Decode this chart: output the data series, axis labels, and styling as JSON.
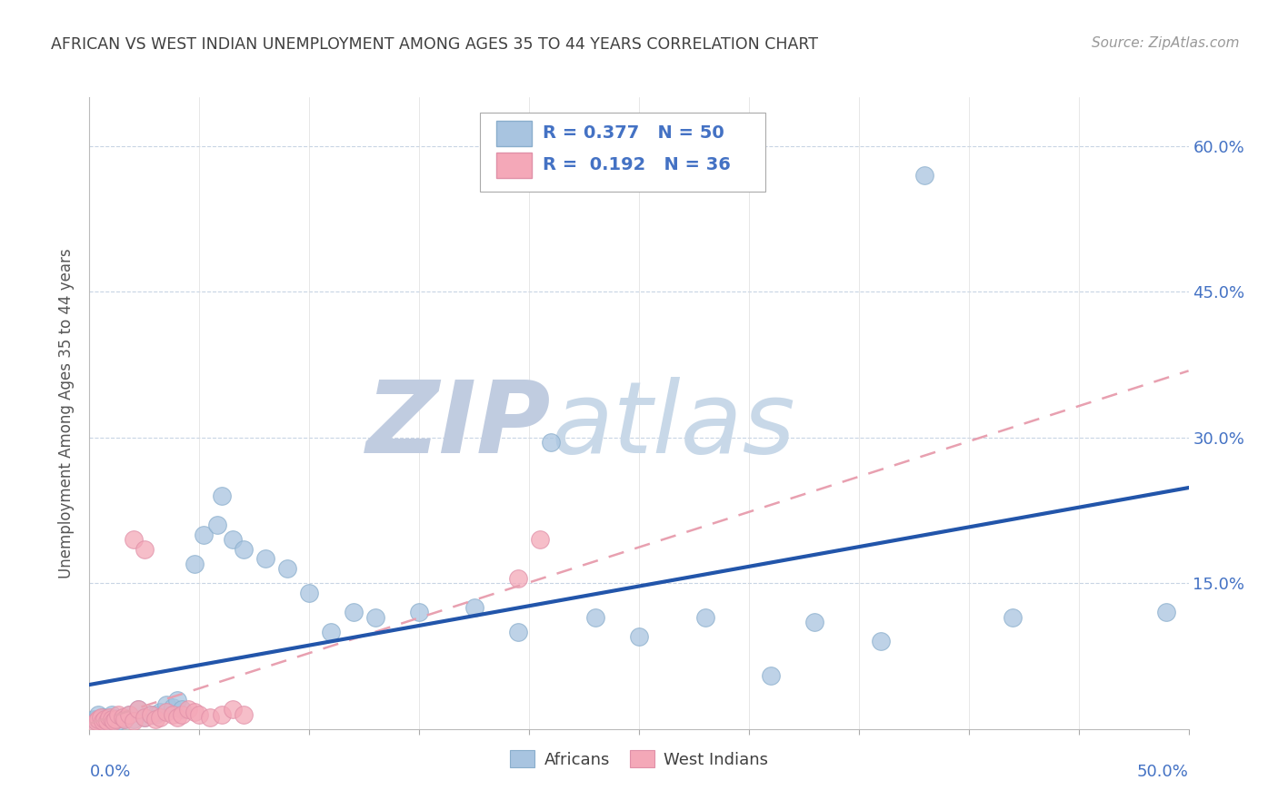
{
  "title": "AFRICAN VS WEST INDIAN UNEMPLOYMENT AMONG AGES 35 TO 44 YEARS CORRELATION CHART",
  "source": "Source: ZipAtlas.com",
  "ylabel": "Unemployment Among Ages 35 to 44 years",
  "xlim": [
    0.0,
    0.5
  ],
  "ylim": [
    0.0,
    0.65
  ],
  "ytick_positions": [
    0.15,
    0.3,
    0.45,
    0.6
  ],
  "africans_R": 0.377,
  "africans_N": 50,
  "westindians_R": 0.192,
  "westindians_N": 36,
  "african_color": "#a8c4e0",
  "westindian_color": "#f4a8b8",
  "african_line_color": "#2255aa",
  "westindian_line_color": "#e8a0b0",
  "background_color": "#ffffff",
  "grid_color": "#c8d4e4",
  "title_color": "#404040",
  "legend_text_color": "#4472c4",
  "africans_x": [
    0.002,
    0.003,
    0.004,
    0.005,
    0.006,
    0.007,
    0.008,
    0.009,
    0.01,
    0.01,
    0.012,
    0.013,
    0.015,
    0.016,
    0.018,
    0.02,
    0.022,
    0.025,
    0.028,
    0.03,
    0.032,
    0.035,
    0.038,
    0.04,
    0.042,
    0.048,
    0.052,
    0.058,
    0.06,
    0.065,
    0.07,
    0.08,
    0.09,
    0.1,
    0.11,
    0.12,
    0.13,
    0.15,
    0.175,
    0.195,
    0.21,
    0.23,
    0.25,
    0.28,
    0.31,
    0.33,
    0.36,
    0.38,
    0.42,
    0.49
  ],
  "africans_y": [
    0.01,
    0.01,
    0.015,
    0.008,
    0.012,
    0.01,
    0.008,
    0.01,
    0.012,
    0.015,
    0.01,
    0.008,
    0.012,
    0.01,
    0.015,
    0.01,
    0.02,
    0.012,
    0.015,
    0.015,
    0.018,
    0.025,
    0.022,
    0.03,
    0.02,
    0.17,
    0.2,
    0.21,
    0.24,
    0.195,
    0.185,
    0.175,
    0.165,
    0.14,
    0.1,
    0.12,
    0.115,
    0.12,
    0.125,
    0.1,
    0.295,
    0.115,
    0.095,
    0.115,
    0.055,
    0.11,
    0.09,
    0.57,
    0.115,
    0.12
  ],
  "westindians_x": [
    0.002,
    0.003,
    0.004,
    0.005,
    0.006,
    0.007,
    0.008,
    0.009,
    0.01,
    0.011,
    0.012,
    0.013,
    0.015,
    0.016,
    0.018,
    0.02,
    0.022,
    0.025,
    0.028,
    0.03,
    0.032,
    0.035,
    0.038,
    0.04,
    0.042,
    0.045,
    0.048,
    0.05,
    0.055,
    0.06,
    0.065,
    0.07,
    0.02,
    0.025,
    0.195,
    0.205
  ],
  "westindians_y": [
    0.005,
    0.008,
    0.01,
    0.012,
    0.008,
    0.01,
    0.008,
    0.012,
    0.01,
    0.008,
    0.01,
    0.015,
    0.012,
    0.01,
    0.015,
    0.008,
    0.02,
    0.012,
    0.015,
    0.01,
    0.012,
    0.018,
    0.015,
    0.012,
    0.015,
    0.02,
    0.018,
    0.015,
    0.012,
    0.015,
    0.02,
    0.015,
    0.195,
    0.185,
    0.155,
    0.195
  ],
  "watermark_color_zip": "#c0cce0",
  "watermark_color_atlas": "#c8d8e8"
}
